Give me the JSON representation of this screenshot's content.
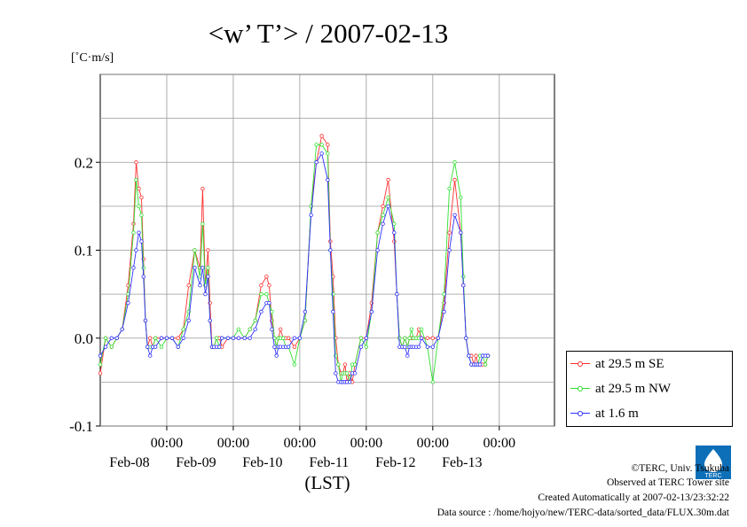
{
  "chart_data": {
    "type": "line",
    "title": "<w’ T’> / 2007-02-13",
    "unit_label": "[˚C·m/s]",
    "xlabel": "(LST)",
    "ylim": [
      -0.1,
      0.3
    ],
    "y_ticks": [
      "-0.1",
      "0.0",
      "0.1",
      "0.2"
    ],
    "x_range_days": [
      7.0,
      13.83
    ],
    "x_ticks": [
      {
        "day": 8,
        "time": "00:00",
        "date": "Feb-08"
      },
      {
        "day": 9,
        "time": "00:00",
        "date": "Feb-09"
      },
      {
        "day": 10,
        "time": "00:00",
        "date": "Feb-10"
      },
      {
        "day": 11,
        "time": "00:00",
        "date": "Feb-11"
      },
      {
        "day": 12,
        "time": "00:00",
        "date": "Feb-12"
      },
      {
        "day": 13,
        "time": "00:00",
        "date": "Feb-13"
      }
    ],
    "x_tick_note": "x values are day-of-February",
    "series": [
      {
        "name": "at 29.5 m SE",
        "color": "#ff3030",
        "x": [
          7.0,
          7.08,
          7.17,
          7.25,
          7.33,
          7.42,
          7.5,
          7.54,
          7.58,
          7.62,
          7.65,
          7.68,
          7.71,
          7.75,
          7.79,
          7.83,
          7.92,
          8.0,
          8.08,
          8.17,
          8.25,
          8.33,
          8.42,
          8.5,
          8.54,
          8.58,
          8.62,
          8.65,
          8.68,
          8.71,
          8.75,
          8.79,
          8.83,
          8.92,
          9.0,
          9.08,
          9.17,
          9.25,
          9.33,
          9.42,
          9.5,
          9.54,
          9.58,
          9.62,
          9.65,
          9.68,
          9.71,
          9.75,
          9.79,
          9.83,
          9.92,
          10.0,
          10.08,
          10.17,
          10.25,
          10.33,
          10.42,
          10.46,
          10.5,
          10.54,
          10.58,
          10.62,
          10.65,
          10.68,
          10.71,
          10.75,
          10.79,
          10.83,
          10.92,
          11.0,
          11.08,
          11.17,
          11.25,
          11.33,
          11.42,
          11.46,
          11.5,
          11.54,
          11.58,
          11.62,
          11.65,
          11.68,
          11.71,
          11.75,
          11.79,
          11.83,
          11.92,
          12.0,
          12.08,
          12.17,
          12.25,
          12.33,
          12.42,
          12.46,
          12.5,
          12.54,
          12.58,
          12.62,
          12.65,
          12.68,
          12.71,
          12.75,
          12.79,
          12.83
        ],
        "y": [
          -0.04,
          0.0,
          -0.01,
          0.0,
          0.01,
          0.06,
          0.13,
          0.2,
          0.17,
          0.16,
          0.09,
          0.02,
          -0.01,
          0.0,
          -0.01,
          0.0,
          0.0,
          0.0,
          0.0,
          0.0,
          0.01,
          0.06,
          0.1,
          0.08,
          0.17,
          0.06,
          0.1,
          0.04,
          -0.01,
          -0.01,
          0.0,
          0.0,
          -0.01,
          0.0,
          0.0,
          0.0,
          0.0,
          0.01,
          0.02,
          0.06,
          0.07,
          0.06,
          0.02,
          0.0,
          -0.01,
          0.0,
          0.01,
          0.0,
          0.0,
          0.0,
          -0.01,
          0.0,
          0.02,
          0.15,
          0.2,
          0.23,
          0.22,
          0.11,
          0.07,
          0.0,
          -0.03,
          -0.04,
          -0.04,
          -0.03,
          -0.05,
          -0.04,
          -0.05,
          -0.03,
          0.0,
          0.0,
          0.04,
          0.12,
          0.15,
          0.18,
          0.11,
          0.05,
          0.0,
          -0.01,
          0.0,
          -0.01,
          0.0,
          0.0,
          0.0,
          0.0,
          0.01,
          0.0,
          0.0,
          0.0,
          0.0,
          0.04,
          0.12,
          0.18,
          0.12,
          0.06,
          0.0,
          -0.02,
          -0.02,
          -0.03,
          -0.02,
          -0.03,
          -0.03,
          -0.03,
          -0.03,
          -0.02
        ]
      },
      {
        "name": "at 29.5 m NW",
        "color": "#30e030",
        "x": [
          7.0,
          7.08,
          7.17,
          7.25,
          7.33,
          7.42,
          7.5,
          7.54,
          7.58,
          7.62,
          7.65,
          7.68,
          7.71,
          7.75,
          7.79,
          7.83,
          7.92,
          8.0,
          8.08,
          8.17,
          8.25,
          8.33,
          8.42,
          8.5,
          8.54,
          8.58,
          8.62,
          8.65,
          8.68,
          8.71,
          8.75,
          8.79,
          8.83,
          8.92,
          9.0,
          9.08,
          9.17,
          9.25,
          9.33,
          9.42,
          9.5,
          9.54,
          9.58,
          9.62,
          9.65,
          9.68,
          9.71,
          9.75,
          9.79,
          9.83,
          9.92,
          10.0,
          10.08,
          10.17,
          10.25,
          10.33,
          10.42,
          10.46,
          10.5,
          10.54,
          10.58,
          10.62,
          10.65,
          10.68,
          10.71,
          10.75,
          10.79,
          10.83,
          10.92,
          11.0,
          11.08,
          11.17,
          11.25,
          11.33,
          11.42,
          11.46,
          11.5,
          11.54,
          11.58,
          11.62,
          11.65,
          11.68,
          11.71,
          11.75,
          11.79,
          11.83,
          11.92,
          12.0,
          12.08,
          12.17,
          12.25,
          12.33,
          12.42,
          12.46,
          12.5,
          12.54,
          12.58,
          12.62,
          12.65,
          12.68,
          12.71,
          12.75,
          12.79,
          12.83
        ],
        "y": [
          -0.03,
          0.0,
          -0.01,
          0.0,
          0.01,
          0.05,
          0.12,
          0.18,
          0.15,
          0.14,
          0.08,
          0.02,
          -0.01,
          -0.01,
          -0.01,
          0.0,
          -0.01,
          0.0,
          0.0,
          -0.01,
          0.01,
          0.03,
          0.1,
          0.07,
          0.13,
          0.06,
          0.08,
          0.02,
          -0.01,
          -0.01,
          0.0,
          -0.01,
          0.0,
          0.0,
          0.0,
          0.01,
          0.0,
          0.01,
          0.02,
          0.05,
          0.05,
          0.04,
          0.03,
          0.0,
          -0.01,
          0.0,
          0.0,
          0.0,
          -0.01,
          -0.01,
          -0.03,
          0.0,
          0.02,
          0.15,
          0.22,
          0.22,
          0.21,
          0.1,
          0.05,
          -0.02,
          -0.03,
          -0.05,
          -0.04,
          -0.04,
          -0.04,
          -0.05,
          -0.03,
          -0.03,
          0.0,
          -0.01,
          0.03,
          0.12,
          0.14,
          0.16,
          0.13,
          0.05,
          0.0,
          -0.01,
          0.0,
          -0.01,
          0.0,
          0.01,
          0.0,
          0.0,
          0.0,
          0.01,
          -0.01,
          -0.05,
          0.0,
          0.05,
          0.17,
          0.2,
          0.16,
          0.07,
          0.0,
          -0.02,
          -0.03,
          -0.03,
          -0.03,
          -0.03,
          -0.02,
          -0.02,
          -0.03,
          -0.02
        ]
      },
      {
        "name": "at 1.6 m",
        "color": "#3030ff",
        "x": [
          7.0,
          7.08,
          7.17,
          7.25,
          7.33,
          7.42,
          7.5,
          7.54,
          7.58,
          7.62,
          7.65,
          7.68,
          7.71,
          7.75,
          7.79,
          7.83,
          7.92,
          8.0,
          8.08,
          8.17,
          8.25,
          8.33,
          8.42,
          8.5,
          8.54,
          8.58,
          8.62,
          8.65,
          8.68,
          8.71,
          8.75,
          8.79,
          8.83,
          8.92,
          9.0,
          9.08,
          9.17,
          9.25,
          9.33,
          9.42,
          9.5,
          9.54,
          9.58,
          9.62,
          9.65,
          9.68,
          9.71,
          9.75,
          9.79,
          9.83,
          9.92,
          10.0,
          10.08,
          10.17,
          10.25,
          10.33,
          10.42,
          10.46,
          10.5,
          10.54,
          10.58,
          10.62,
          10.65,
          10.68,
          10.71,
          10.75,
          10.79,
          10.83,
          10.92,
          11.0,
          11.08,
          11.17,
          11.25,
          11.33,
          11.42,
          11.46,
          11.5,
          11.54,
          11.58,
          11.62,
          11.65,
          11.68,
          11.71,
          11.75,
          11.79,
          11.83,
          11.92,
          12.0,
          12.08,
          12.17,
          12.25,
          12.33,
          12.42,
          12.46,
          12.5,
          12.54,
          12.58,
          12.62,
          12.65,
          12.68,
          12.71,
          12.75,
          12.79,
          12.83
        ],
        "y": [
          -0.02,
          -0.01,
          0.0,
          0.0,
          0.01,
          0.04,
          0.08,
          0.1,
          0.12,
          0.11,
          0.07,
          0.02,
          -0.01,
          -0.02,
          -0.01,
          -0.01,
          0.0,
          0.0,
          0.0,
          -0.01,
          0.0,
          0.02,
          0.08,
          0.06,
          0.08,
          0.05,
          0.07,
          0.02,
          -0.01,
          -0.01,
          -0.01,
          -0.01,
          0.0,
          0.0,
          0.0,
          0.0,
          0.0,
          0.0,
          0.01,
          0.03,
          0.04,
          0.04,
          0.01,
          -0.01,
          -0.02,
          -0.01,
          -0.01,
          -0.01,
          -0.01,
          -0.01,
          0.0,
          0.0,
          0.03,
          0.14,
          0.2,
          0.21,
          0.18,
          0.1,
          0.03,
          -0.04,
          -0.05,
          -0.05,
          -0.05,
          -0.05,
          -0.05,
          -0.05,
          -0.04,
          -0.04,
          -0.01,
          0.0,
          0.03,
          0.1,
          0.13,
          0.15,
          0.12,
          0.05,
          -0.01,
          -0.01,
          -0.01,
          -0.02,
          -0.01,
          -0.01,
          -0.01,
          -0.01,
          -0.01,
          0.0,
          -0.01,
          -0.01,
          0.0,
          0.03,
          0.1,
          0.14,
          0.12,
          0.06,
          0.0,
          -0.02,
          -0.03,
          -0.03,
          -0.03,
          -0.03,
          -0.03,
          -0.02,
          -0.02,
          -0.02
        ]
      }
    ],
    "grid": true,
    "legend_position": "right"
  },
  "footer": {
    "copyright": "©TERC, Univ. Tsukuba",
    "observed": "Observed at TERC Tower site",
    "created": "Created Automatically at 2007-02-13/23:32:22",
    "source": "Data source : /home/hojyo/new/TERC-data/sorted_data/FLUX.30m.dat",
    "logo_text": "TERC"
  }
}
